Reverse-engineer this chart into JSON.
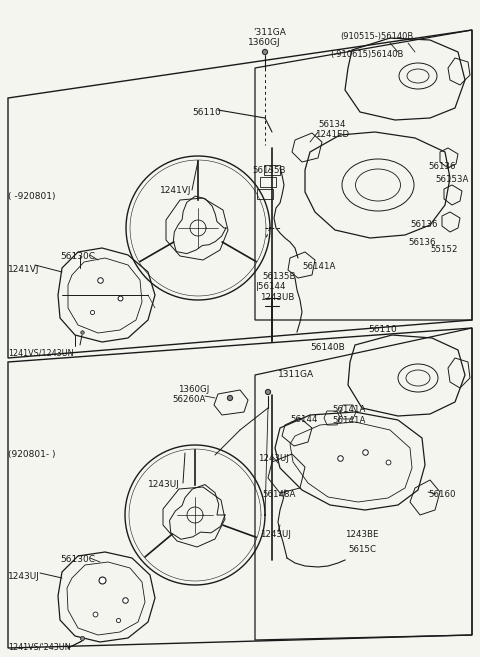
{
  "bg_color": "#f5f5f0",
  "line_color": "#1a1a1a",
  "fig_width": 4.8,
  "fig_height": 6.57,
  "dpi": 100,
  "labels": {
    "t_1311GA": "'311GA",
    "t_1360GJ": "1360GJ",
    "t_56110_top": "56110",
    "t_56140B_a": "(910515-)56140B",
    "t_56140B_b": "(-910615)56140B",
    "t_56134": "56134",
    "t_1241ED": "1241ED",
    "t_56135B_top": "56135B",
    "t_56136_a": "56136",
    "t_56136_b": "56136",
    "t_56136_c": "56136",
    "t_56153A": "56153A",
    "t_55152": "55152",
    "t_56141A_top": "56141A",
    "t_56135B_bot": "56135B",
    "t_56144_top": "|56144",
    "t_1243UB": "1243UB",
    "t_1241VJ_top": "1241VJ",
    "t_56130C_top": "56130C",
    "t_1241VJ_cov": "1241VJ",
    "t_1241VS_top": "1241VS/1243UN",
    "t_date_top": "( -920801)",
    "t_56110_bot": "56110",
    "t_56140B_bot": "56140B",
    "t_1311GA_bot": "1311GA",
    "t_1360GJ_bot": "1360GJ",
    "t_56260A": "56260A",
    "t_56144_bot": "56144",
    "t_56141A_b1": "56141A",
    "t_56141A_b2": "56141A",
    "t_1243UJ_whl": "1243UJ",
    "t_1243UJ_in": "1243UJ",
    "t_1243UJ_lo": "1243UJ",
    "t_56148A": "56148A",
    "t_56160": "56160",
    "t_1243BE": "1243BE",
    "t_5615C": "5615C",
    "t_56130C_bot": "56130C",
    "t_1243UJ_cv": "1243UJ",
    "t_1241VS_bot": "1241VS/'243UN",
    "t_date_bot": "(920801- )"
  }
}
